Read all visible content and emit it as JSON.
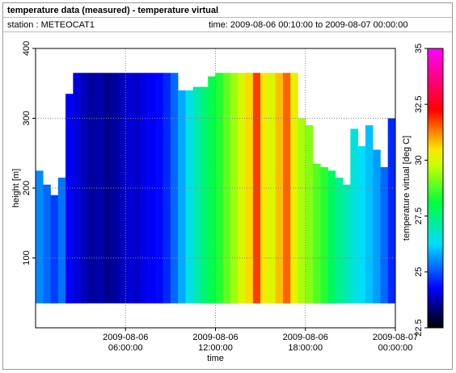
{
  "chart_data": {
    "type": "heatmap",
    "title": "temperature data (measured) - temperature virtual",
    "station": "station : METEOCAT1",
    "time_range": "time: 2009-08-06 00:10:00 to 2009-08-07 00:00:00",
    "x_label": "time",
    "y_label": "height [m]",
    "colorbar_label": "temperature virtual [deg C]",
    "x": [
      "2009-08-06 00:00:00",
      "2009-08-06 00:30:00",
      "2009-08-06 01:00:00",
      "2009-08-06 01:30:00",
      "2009-08-06 02:00:00",
      "2009-08-06 02:30:00",
      "2009-08-06 03:00:00",
      "2009-08-06 03:30:00",
      "2009-08-06 04:00:00",
      "2009-08-06 04:30:00",
      "2009-08-06 05:00:00",
      "2009-08-06 05:30:00",
      "2009-08-06 06:00:00",
      "2009-08-06 06:30:00",
      "2009-08-06 07:00:00",
      "2009-08-06 07:30:00",
      "2009-08-06 08:00:00",
      "2009-08-06 08:30:00",
      "2009-08-06 09:00:00",
      "2009-08-06 09:30:00",
      "2009-08-06 10:00:00",
      "2009-08-06 10:30:00",
      "2009-08-06 11:00:00",
      "2009-08-06 11:30:00",
      "2009-08-06 12:00:00",
      "2009-08-06 12:30:00",
      "2009-08-06 13:00:00",
      "2009-08-06 13:30:00",
      "2009-08-06 14:00:00",
      "2009-08-06 14:30:00",
      "2009-08-06 15:00:00",
      "2009-08-06 15:30:00",
      "2009-08-06 16:00:00",
      "2009-08-06 16:30:00",
      "2009-08-06 17:00:00",
      "2009-08-06 17:30:00",
      "2009-08-06 18:00:00",
      "2009-08-06 18:30:00",
      "2009-08-06 19:00:00",
      "2009-08-06 19:30:00",
      "2009-08-06 20:00:00",
      "2009-08-06 20:30:00",
      "2009-08-06 21:00:00",
      "2009-08-06 21:30:00",
      "2009-08-06 22:00:00",
      "2009-08-06 22:30:00",
      "2009-08-06 23:00:00",
      "2009-08-06 23:30:00"
    ],
    "values": [
      25.5,
      25.2,
      24.8,
      25.3,
      24.2,
      24.0,
      23.8,
      23.6,
      23.7,
      23.5,
      23.6,
      23.8,
      24.0,
      23.9,
      24.1,
      24.2,
      24.3,
      24.6,
      25.2,
      25.8,
      26.5,
      27.0,
      27.6,
      28.0,
      28.4,
      28.9,
      29.4,
      30.0,
      30.6,
      31.8,
      30.4,
      30.0,
      30.8,
      31.5,
      30.2,
      29.5,
      29.2,
      28.8,
      28.4,
      27.8,
      27.3,
      27.0,
      26.6,
      26.3,
      26.0,
      25.7,
      25.2,
      24.6
    ],
    "top_heights": [
      225,
      205,
      190,
      215,
      335,
      365,
      365,
      365,
      365,
      365,
      365,
      365,
      365,
      365,
      365,
      365,
      365,
      365,
      365,
      340,
      340,
      345,
      345,
      360,
      365,
      365,
      365,
      365,
      365,
      365,
      365,
      365,
      365,
      365,
      365,
      300,
      290,
      235,
      230,
      225,
      215,
      205,
      285,
      260,
      290,
      255,
      230,
      300
    ],
    "base_height": 35,
    "xlim": [
      "2009-08-06 00:00:00",
      "2009-08-07 00:00:00"
    ],
    "xticks": [
      "2009-08-06 06:00:00",
      "2009-08-06 12:00:00",
      "2009-08-06 18:00:00",
      "2009-08-07 00:00:00"
    ],
    "ylim": [
      0,
      400
    ],
    "yticks": [
      100,
      200,
      300,
      400
    ],
    "zlim": [
      22.5,
      35
    ],
    "zticks": [
      22.5,
      25,
      27.5,
      30,
      32.5,
      35
    ],
    "grid": true
  }
}
